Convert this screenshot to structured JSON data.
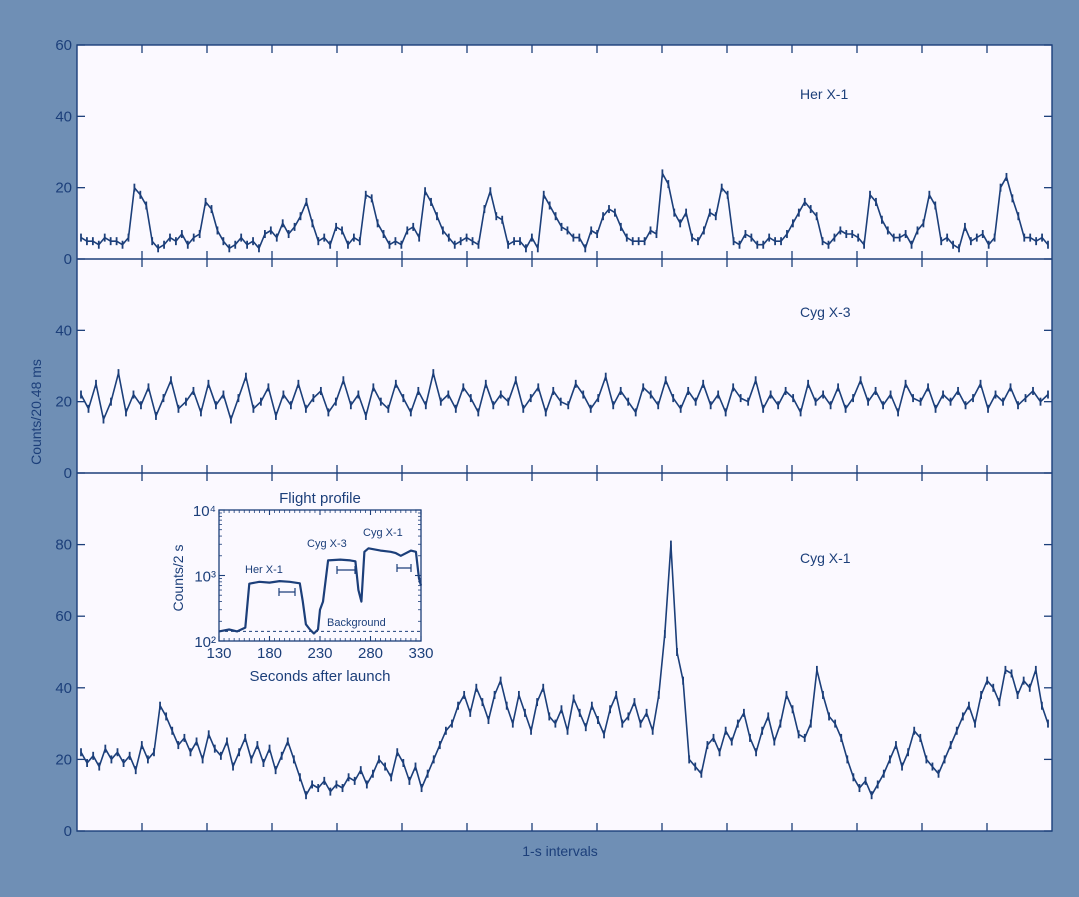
{
  "colors": {
    "frame_background": "#6f8fb5",
    "plot_background": "#fbf9ff",
    "ink": "#1c3f7a"
  },
  "ylabel": "Counts/20.48 ms",
  "xlabel": "1-s intervals",
  "chart_data": [
    {
      "type": "line",
      "title": "Her X-1",
      "ylim": [
        0,
        60
      ],
      "yticks": [
        0,
        20,
        40,
        60
      ],
      "x_intervals": 15,
      "series": [
        {
          "name": "Her X-1",
          "values": [
            6,
            5,
            5,
            4,
            6,
            5,
            5,
            4,
            6,
            20,
            18,
            15,
            5,
            3,
            4,
            6,
            5,
            7,
            4,
            6,
            7,
            16,
            14,
            8,
            5,
            3,
            4,
            6,
            4,
            5,
            3,
            7,
            8,
            6,
            10,
            7,
            9,
            12,
            16,
            10,
            5,
            6,
            4,
            9,
            8,
            4,
            6,
            5,
            18,
            17,
            10,
            7,
            4,
            5,
            4,
            8,
            9,
            6,
            19,
            16,
            12,
            8,
            6,
            4,
            5,
            6,
            5,
            4,
            14,
            19,
            12,
            11,
            4,
            5,
            5,
            3,
            6,
            3,
            18,
            15,
            12,
            9,
            8,
            6,
            6,
            3,
            8,
            7,
            12,
            14,
            13,
            9,
            6,
            5,
            5,
            5,
            8,
            7,
            24,
            21,
            13,
            10,
            13,
            6,
            5,
            8,
            13,
            12,
            20,
            18,
            5,
            4,
            7,
            6,
            4,
            4,
            6,
            5,
            5,
            7,
            10,
            13,
            16,
            14,
            12,
            5,
            4,
            6,
            8,
            7,
            7,
            6,
            4,
            18,
            16,
            11,
            8,
            6,
            6,
            7,
            4,
            8,
            10,
            18,
            15,
            5,
            6,
            4,
            3,
            9,
            5,
            6,
            7,
            4,
            6,
            20,
            23,
            17,
            12,
            6,
            6,
            5,
            6,
            4
          ]
        }
      ]
    },
    {
      "type": "line",
      "title": "Cyg X-3",
      "ylim": [
        0,
        60
      ],
      "yticks": [
        0,
        20,
        40
      ],
      "x_intervals": 15,
      "series": [
        {
          "name": "Cyg X-3",
          "values": [
            22,
            18,
            25,
            15,
            20,
            28,
            17,
            22,
            19,
            24,
            16,
            21,
            26,
            18,
            20,
            23,
            17,
            25,
            19,
            22,
            15,
            21,
            27,
            18,
            20,
            24,
            16,
            22,
            19,
            25,
            18,
            21,
            23,
            17,
            20,
            26,
            19,
            22,
            16,
            24,
            20,
            18,
            25,
            21,
            17,
            23,
            19,
            28,
            20,
            22,
            18,
            24,
            21,
            17,
            25,
            19,
            22,
            20,
            26,
            18,
            21,
            24,
            17,
            23,
            20,
            19,
            25,
            22,
            18,
            21,
            27,
            19,
            23,
            20,
            17,
            24,
            22,
            19,
            26,
            21,
            18,
            23,
            20,
            25,
            19,
            22,
            17,
            24,
            21,
            20,
            26,
            18,
            22,
            19,
            23,
            21,
            17,
            25,
            20,
            22,
            19,
            24,
            18,
            21,
            26,
            20,
            23,
            19,
            22,
            17,
            25,
            21,
            20,
            24,
            18,
            22,
            20,
            23,
            19,
            21,
            25,
            18,
            22,
            20,
            24,
            19,
            21,
            23,
            20,
            22
          ]
        }
      ]
    },
    {
      "type": "line",
      "title": "Cyg X-1",
      "ylim": [
        0,
        100
      ],
      "yticks": [
        0,
        20,
        40,
        60,
        80
      ],
      "x_intervals": 15,
      "series": [
        {
          "name": "Cyg X-1",
          "values": [
            22,
            19,
            21,
            18,
            23,
            20,
            22,
            19,
            21,
            17,
            24,
            20,
            22,
            35,
            32,
            28,
            24,
            26,
            22,
            25,
            20,
            27,
            23,
            21,
            25,
            18,
            22,
            26,
            20,
            24,
            19,
            23,
            17,
            21,
            25,
            20,
            15,
            10,
            13,
            12,
            14,
            11,
            13,
            12,
            15,
            14,
            17,
            13,
            16,
            20,
            18,
            15,
            22,
            19,
            14,
            18,
            12,
            16,
            20,
            24,
            28,
            30,
            35,
            38,
            33,
            40,
            36,
            31,
            38,
            42,
            35,
            30,
            38,
            33,
            28,
            36,
            40,
            32,
            30,
            34,
            28,
            37,
            33,
            29,
            35,
            31,
            27,
            34,
            38,
            30,
            32,
            36,
            30,
            33,
            28,
            38,
            55,
            80,
            50,
            42,
            20,
            18,
            16,
            24,
            26,
            22,
            28,
            25,
            30,
            33,
            26,
            22,
            28,
            32,
            25,
            30,
            38,
            34,
            27,
            26,
            30,
            45,
            38,
            32,
            30,
            26,
            20,
            15,
            12,
            14,
            10,
            13,
            16,
            20,
            24,
            18,
            22,
            28,
            26,
            20,
            18,
            16,
            20,
            24,
            28,
            32,
            35,
            30,
            38,
            42,
            40,
            36,
            45,
            44,
            38,
            42,
            40,
            45,
            35,
            30
          ]
        }
      ]
    },
    {
      "type": "line",
      "title": "Flight profile",
      "xlabel": "Seconds after launch",
      "ylabel": "Counts/2 s",
      "log_y": true,
      "xlim": [
        130,
        330
      ],
      "ylim": [
        100,
        10000
      ],
      "xticks": [
        130,
        180,
        230,
        280,
        330
      ],
      "yticks": [
        100,
        1000,
        10000
      ],
      "ytick_labels": [
        "10²",
        "10³",
        "10⁴"
      ],
      "annotations": [
        "Her X-1",
        "Cyg X-3",
        "Cyg X-1",
        "Background"
      ],
      "background_level": 140,
      "series": [
        {
          "name": "Flight profile",
          "x": [
            130,
            140,
            148,
            152,
            156,
            160,
            170,
            180,
            190,
            200,
            210,
            213,
            216,
            220,
            224,
            228,
            230,
            233,
            238,
            250,
            260,
            265,
            268,
            271,
            274,
            278,
            290,
            300,
            305,
            310,
            320,
            325,
            328,
            330
          ],
          "values": [
            140,
            150,
            140,
            150,
            160,
            750,
            800,
            780,
            820,
            800,
            760,
            400,
            180,
            150,
            130,
            150,
            300,
            400,
            1700,
            1750,
            1700,
            1650,
            600,
            400,
            2300,
            2600,
            2400,
            2300,
            2200,
            2000,
            2400,
            2300,
            900,
            700
          ]
        }
      ]
    }
  ]
}
